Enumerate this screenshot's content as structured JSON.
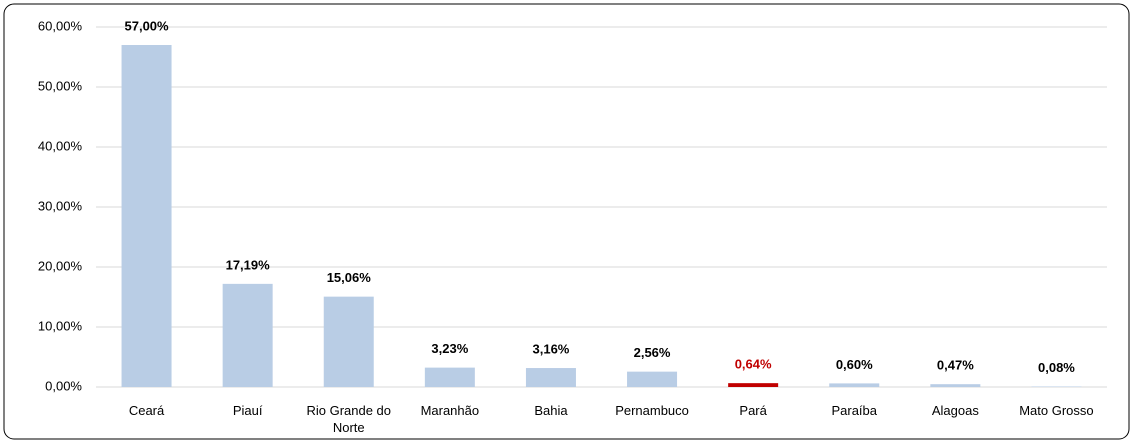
{
  "chart_data": {
    "type": "bar",
    "categories": [
      "Ceará",
      "Piauí",
      "Rio Grande do Norte",
      "Maranhão",
      "Bahia",
      "Pernambuco",
      "Pará",
      "Paraíba",
      "Alagoas",
      "Mato Grosso"
    ],
    "values": [
      57.0,
      17.19,
      15.06,
      3.23,
      3.16,
      2.56,
      0.64,
      0.6,
      0.47,
      0.08
    ],
    "value_labels": [
      "57,00%",
      "17,19%",
      "15,06%",
      "3,23%",
      "3,16%",
      "2,56%",
      "0,64%",
      "0,60%",
      "0,47%",
      "0,08%"
    ],
    "colors": [
      "#b9cde5",
      "#b9cde5",
      "#b9cde5",
      "#b9cde5",
      "#b9cde5",
      "#b9cde5",
      "#c00000",
      "#b9cde5",
      "#b9cde5",
      "#b9cde5"
    ],
    "value_label_colors": [
      "#000000",
      "#000000",
      "#000000",
      "#000000",
      "#000000",
      "#000000",
      "#c00000",
      "#000000",
      "#000000",
      "#000000"
    ],
    "ylim": [
      0,
      60
    ],
    "yticks": [
      {
        "value": 0,
        "label": "0,00%"
      },
      {
        "value": 10,
        "label": "10,00%"
      },
      {
        "value": 20,
        "label": "20,00%"
      },
      {
        "value": 30,
        "label": "30,00%"
      },
      {
        "value": 40,
        "label": "40,00%"
      },
      {
        "value": 50,
        "label": "50,00%"
      },
      {
        "value": 60,
        "label": "60,00%"
      }
    ],
    "grid": true
  }
}
